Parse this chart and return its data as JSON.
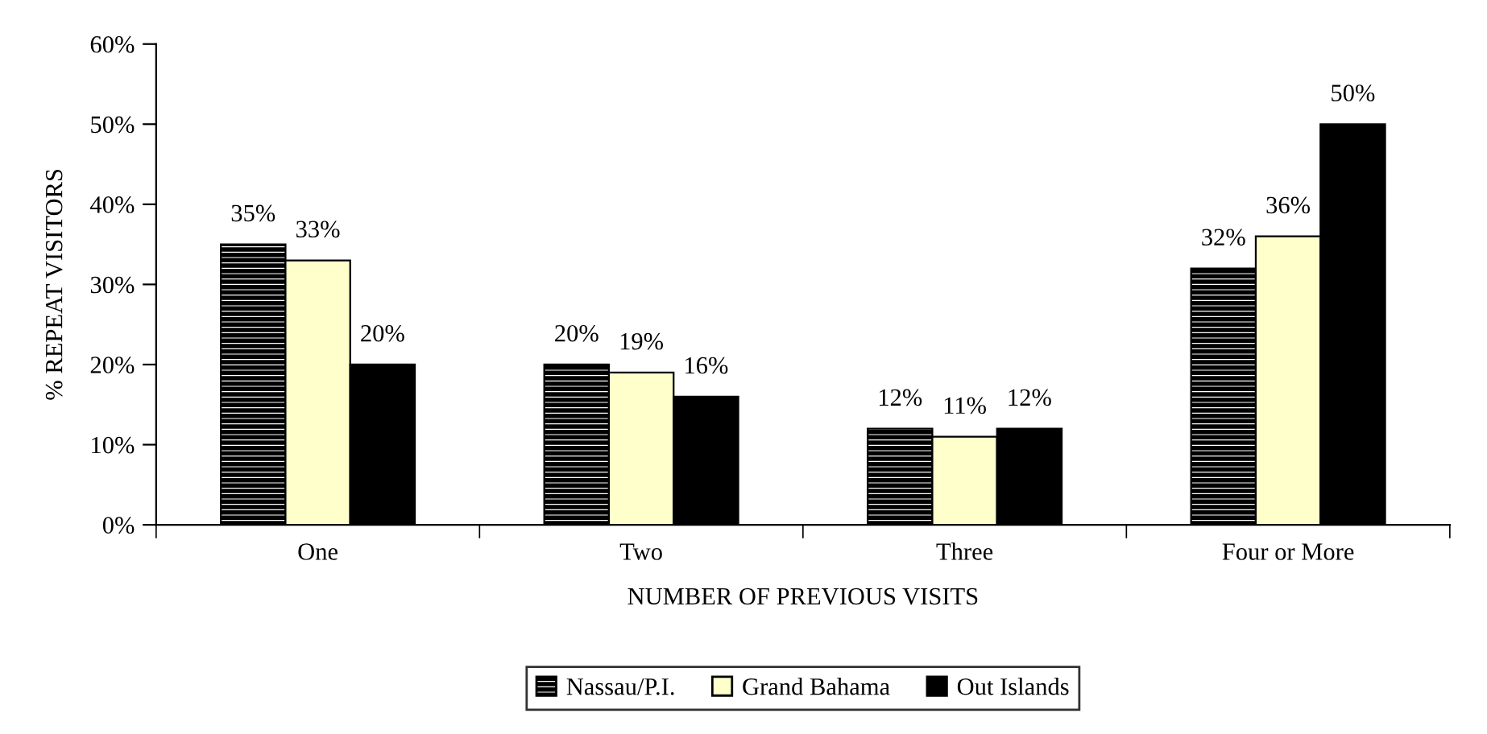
{
  "chart_data": {
    "type": "bar",
    "xlabel": "NUMBER OF PREVIOUS VISITS",
    "ylabel": "% REPEAT VISITORS",
    "categories": [
      "One",
      "Two",
      "Three",
      "Four or More"
    ],
    "series": [
      {
        "name": "Nassau/P.I.",
        "color": "#000000",
        "values": [
          35,
          20,
          12,
          32
        ],
        "value_labels": [
          "35%",
          "20%",
          "12%",
          "32%"
        ]
      },
      {
        "name": "Grand Bahama",
        "color": "#ffffcc",
        "values": [
          33,
          19,
          11,
          36
        ],
        "value_labels": [
          "33%",
          "19%",
          "11%",
          "36%"
        ]
      },
      {
        "name": "Out Islands",
        "color": "#000000",
        "values": [
          20,
          16,
          12,
          50
        ],
        "value_labels": [
          "20%",
          "16%",
          "12%",
          "50%"
        ]
      }
    ],
    "ylim": [
      0,
      60
    ],
    "yticks": [
      {
        "value": 0,
        "label": "0%"
      },
      {
        "value": 10,
        "label": "10%"
      },
      {
        "value": 20,
        "label": "20%"
      },
      {
        "value": 30,
        "label": "30%"
      },
      {
        "value": 40,
        "label": "40%"
      },
      {
        "value": 50,
        "label": "50%"
      },
      {
        "value": 60,
        "label": "60%"
      }
    ],
    "grid": false,
    "legend": "bottom"
  }
}
